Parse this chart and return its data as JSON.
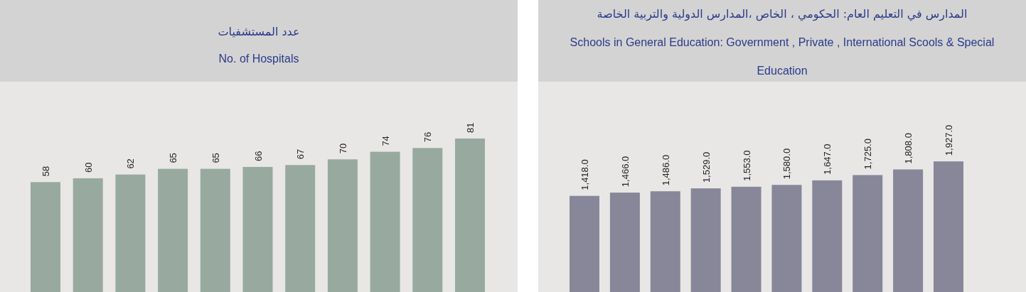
{
  "chart_data": [
    {
      "type": "bar",
      "title": "عدد المستشفيات",
      "subtitle": "No. of  Hospitals",
      "categories": [
        null,
        null,
        null,
        null,
        null,
        null,
        null,
        null,
        null,
        null,
        null
      ],
      "values": [
        58,
        60,
        62,
        65,
        65,
        66,
        67,
        70,
        74,
        76,
        81
      ],
      "color": "#98aaa0",
      "data_labels": true
    },
    {
      "type": "bar",
      "title": "المدارس في التعليم العام: الحكومي ، الخاص ،المدارس الدولية والتربية الخاصة",
      "subtitle": "Schools in General Education: Government , Private , International Scools & Special Education",
      "categories": [
        null,
        null,
        null,
        null,
        null,
        null,
        null,
        null,
        null,
        null
      ],
      "values": [
        1418,
        1466,
        1486,
        1529,
        1553,
        1580,
        1647,
        1725,
        1808,
        1927
      ],
      "value_labels": [
        "1,418.0",
        "1,466.0",
        "1,486.0",
        "1,529.0",
        "1,553.0",
        "1,580.0",
        "1,647.0",
        "1,725.0",
        "1,808.0",
        "1,927.0"
      ],
      "color": "#878799"
    }
  ]
}
